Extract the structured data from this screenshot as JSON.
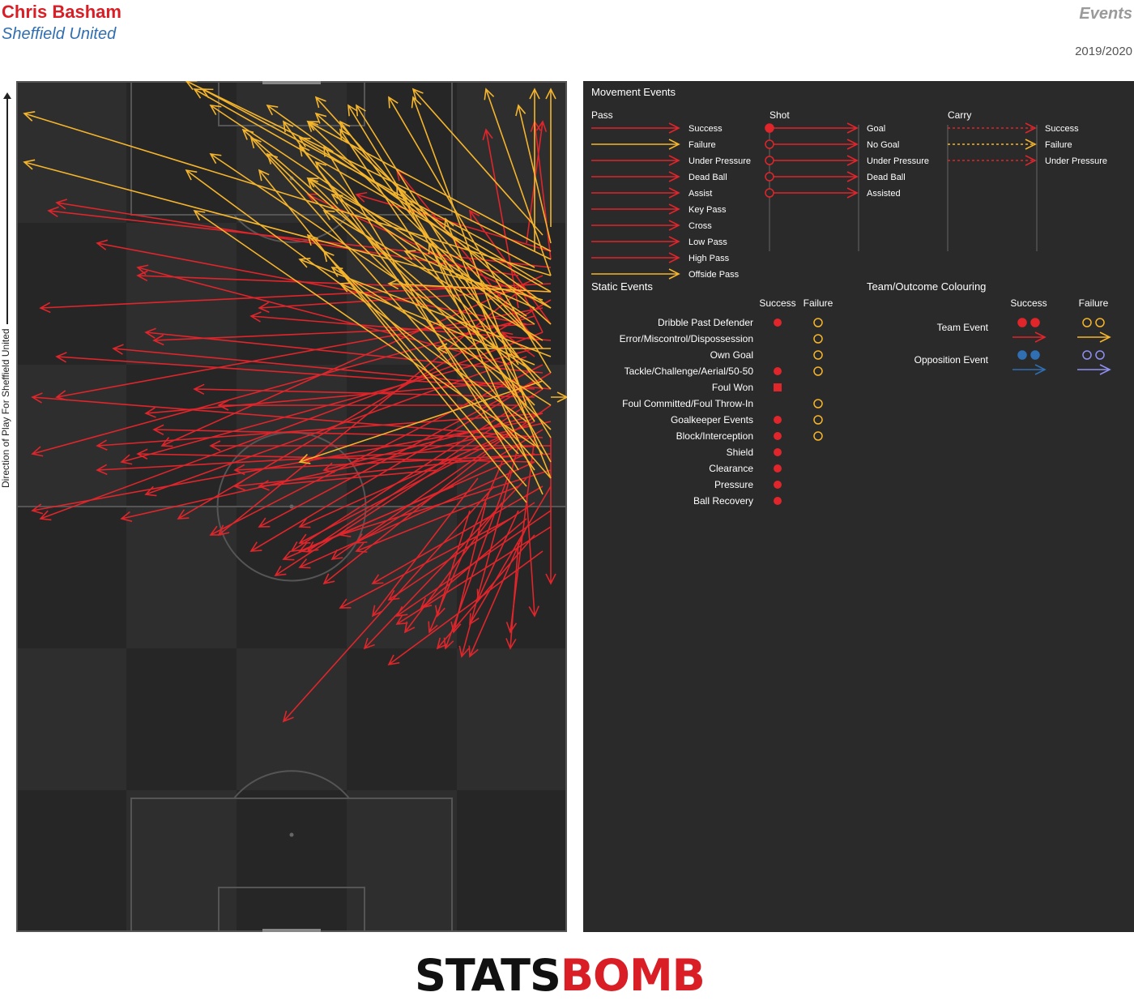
{
  "header": {
    "player": "Chris Basham",
    "team": "Sheffield United",
    "kind": "Events",
    "season": "2019/2020",
    "direction_label": "Direction of Play For Sheffield United"
  },
  "colors": {
    "success": "#e0252b",
    "failure": "#f5b52c",
    "opp_success": "#2f6fb2",
    "opp_failure": "#8f8ff0",
    "pitch_light": "#2e2e2e",
    "pitch_dark": "#262626",
    "legend_bg": "#2a2a2a"
  },
  "legend": {
    "movement_title": "Movement Events",
    "pass": {
      "title": "Pass",
      "items": [
        "Success",
        "Failure",
        "Under Pressure",
        "Dead Ball",
        "Assist",
        "Key Pass",
        "Cross",
        "Low Pass",
        "High Pass",
        "Offside Pass"
      ]
    },
    "shot": {
      "title": "Shot",
      "items": [
        "Goal",
        "No Goal",
        "Under Pressure",
        "Dead Ball",
        "Assisted"
      ]
    },
    "carry": {
      "title": "Carry",
      "items": [
        "Success",
        "Failure",
        "Under Pressure"
      ]
    },
    "static_title": "Static Events",
    "static_success": "Success",
    "static_failure": "Failure",
    "static_items": [
      "Dribble Past Defender",
      "Error/Miscontrol/Dispossession",
      "Own Goal",
      "Tackle/Challenge/Aerial/50-50",
      "Foul Won",
      "Foul Committed/Foul Throw-In",
      "Goalkeeper Events",
      "Block/Interception",
      "Shield",
      "Clearance",
      "Pressure",
      "Ball Recovery"
    ],
    "team_title": "Team/Outcome Colouring",
    "team_success": "Success",
    "team_failure": "Failure",
    "team_rows": [
      "Team Event",
      "Opposition Event"
    ]
  },
  "logo": {
    "stats": "STATS",
    "bomb": "BOMB"
  },
  "chart_data": {
    "type": "scatter",
    "description_axes": "pitch coordinates, x = across width (0-68, left to right as drawn), y = along length (0 at top/attacking end, 105 at bottom)",
    "xlim": [
      0,
      68
    ],
    "ylim": [
      0,
      105
    ],
    "series": [
      {
        "name": "Success",
        "passes": [
          [
            66,
            23,
            4,
            16
          ],
          [
            66,
            25,
            3,
            28
          ],
          [
            66,
            26,
            15,
            24
          ],
          [
            65,
            28,
            5,
            39
          ],
          [
            64,
            29,
            2,
            46
          ],
          [
            65,
            31,
            3,
            54
          ],
          [
            64,
            33,
            13,
            47
          ],
          [
            63,
            34,
            16,
            51
          ],
          [
            66,
            27,
            20,
            54
          ],
          [
            65,
            24,
            18,
            45
          ],
          [
            62,
            26,
            25,
            56
          ],
          [
            65,
            35,
            24,
            56
          ],
          [
            64,
            37,
            30,
            55
          ],
          [
            66,
            36,
            29,
            58
          ],
          [
            65,
            38,
            34,
            58
          ],
          [
            63,
            40,
            36,
            58
          ],
          [
            66,
            40,
            39,
            59
          ],
          [
            64,
            42,
            35,
            55
          ],
          [
            65,
            43,
            42,
            57
          ],
          [
            66,
            45,
            24,
            45
          ],
          [
            63,
            46,
            33,
            59
          ],
          [
            64,
            47,
            35,
            60
          ],
          [
            66,
            48,
            40,
            56
          ],
          [
            62,
            50,
            42,
            58
          ],
          [
            65,
            50,
            44,
            62
          ],
          [
            64,
            52,
            46,
            64
          ],
          [
            66,
            53,
            47,
            66
          ],
          [
            63,
            54,
            50,
            65
          ],
          [
            66,
            55,
            47,
            67
          ],
          [
            64,
            56,
            52,
            70
          ],
          [
            62,
            57,
            61,
            70
          ],
          [
            65,
            58,
            46,
            72
          ],
          [
            63,
            49,
            43,
            70
          ],
          [
            61,
            48,
            53,
            70
          ],
          [
            62,
            45,
            55,
            71
          ],
          [
            60,
            47,
            51,
            68
          ],
          [
            64,
            44,
            61,
            68
          ],
          [
            66,
            50,
            56,
            67
          ],
          [
            58,
            46,
            38,
            62
          ],
          [
            59,
            50,
            33,
            79
          ],
          [
            55,
            46,
            32,
            61
          ],
          [
            57,
            49,
            44,
            66
          ],
          [
            60,
            52,
            48,
            68
          ],
          [
            63,
            55,
            56,
            71
          ],
          [
            61,
            54,
            40,
            65
          ],
          [
            52,
            48,
            30,
            50
          ],
          [
            54,
            50,
            35,
            58
          ],
          [
            63,
            51,
            64,
            66
          ],
          [
            66,
            44,
            66,
            62
          ],
          [
            58,
            52,
            54,
            68
          ],
          [
            56,
            53,
            52,
            66
          ],
          [
            62,
            53,
            57,
            64
          ],
          [
            64,
            34,
            60,
            31
          ],
          [
            65,
            31,
            62,
            25
          ],
          [
            66,
            22,
            64,
            5
          ],
          [
            63,
            20,
            65,
            5
          ],
          [
            62,
            28,
            58,
            6
          ],
          [
            66,
            30,
            56,
            16
          ],
          [
            65,
            33,
            47,
            11
          ],
          [
            66,
            21,
            42,
            14
          ],
          [
            64,
            27,
            36,
            14
          ],
          [
            66,
            32,
            29,
            29
          ],
          [
            65,
            36,
            16,
            31
          ],
          [
            64,
            30,
            17,
            32
          ],
          [
            61,
            26,
            30,
            28
          ],
          [
            66,
            38,
            12,
            33
          ],
          [
            64,
            39,
            22,
            38
          ],
          [
            65,
            41,
            10,
            45
          ],
          [
            66,
            42,
            13,
            54
          ],
          [
            65,
            44,
            2,
            39
          ],
          [
            64,
            38,
            5,
            34
          ],
          [
            62,
            40,
            25,
            40
          ],
          [
            66,
            46,
            27,
            48
          ],
          [
            63,
            42,
            2,
            53
          ],
          [
            64,
            47,
            15,
            46
          ],
          [
            65,
            45,
            10,
            48
          ],
          [
            62,
            24,
            5,
            15
          ],
          [
            63,
            30,
            10,
            20
          ],
          [
            61,
            35,
            15,
            23
          ],
          [
            65,
            41,
            38,
            48
          ],
          [
            60,
            44,
            35,
            57
          ],
          [
            63,
            44,
            17,
            43
          ],
          [
            62,
            37,
            16,
            41
          ],
          [
            64,
            46,
            27,
            50
          ]
        ]
      },
      {
        "name": "Failure",
        "passes": [
          [
            66,
            24,
            1,
            4
          ],
          [
            65,
            27,
            1,
            10
          ],
          [
            66,
            22,
            21,
            0
          ],
          [
            66,
            26,
            22,
            1
          ],
          [
            64,
            23,
            23,
            1
          ],
          [
            63,
            29,
            24,
            3
          ],
          [
            66,
            28,
            31,
            3
          ],
          [
            65,
            33,
            37,
            2
          ],
          [
            66,
            30,
            37,
            4
          ],
          [
            64,
            32,
            36,
            5
          ],
          [
            62,
            35,
            42,
            3
          ],
          [
            66,
            36,
            46,
            2
          ],
          [
            65,
            38,
            40,
            5
          ],
          [
            63,
            40,
            49,
            2
          ],
          [
            64,
            42,
            40,
            6
          ],
          [
            66,
            44,
            41,
            3
          ],
          [
            65,
            46,
            35,
            8
          ],
          [
            64,
            48,
            33,
            5
          ],
          [
            66,
            49,
            29,
            7
          ],
          [
            63,
            52,
            30,
            11
          ],
          [
            62,
            48,
            38,
            8
          ],
          [
            66,
            38,
            37,
            10
          ],
          [
            64,
            40,
            36,
            12
          ],
          [
            66,
            20,
            62,
            3
          ],
          [
            66,
            18,
            66,
            1
          ],
          [
            64,
            21,
            64,
            1
          ],
          [
            66,
            24,
            58,
            1
          ],
          [
            65,
            19,
            49,
            1
          ],
          [
            66,
            21,
            36,
            5
          ],
          [
            65,
            25,
            35,
            7
          ],
          [
            66,
            28,
            36,
            12
          ],
          [
            64,
            30,
            39,
            14
          ],
          [
            66,
            34,
            35,
            22
          ],
          [
            64,
            36,
            24,
            9
          ],
          [
            65,
            38,
            28,
            6
          ],
          [
            66,
            40,
            39,
            23
          ],
          [
            63,
            42,
            21,
            11
          ],
          [
            66,
            43,
            31,
            9
          ],
          [
            64,
            45,
            22,
            16
          ],
          [
            62,
            46,
            36,
            19
          ],
          [
            66,
            47,
            47,
            13
          ],
          [
            66,
            49,
            53,
            17
          ],
          [
            63,
            50,
            38,
            21
          ],
          [
            65,
            51,
            51,
            20
          ],
          [
            66,
            39,
            68,
            39
          ],
          [
            65,
            32,
            38,
            16
          ],
          [
            66,
            26,
            46,
            25
          ],
          [
            64,
            28,
            48,
            21
          ],
          [
            66,
            33,
            52,
            33
          ],
          [
            64,
            35,
            40,
            25
          ],
          [
            65,
            37,
            35,
            47
          ]
        ]
      }
    ]
  }
}
